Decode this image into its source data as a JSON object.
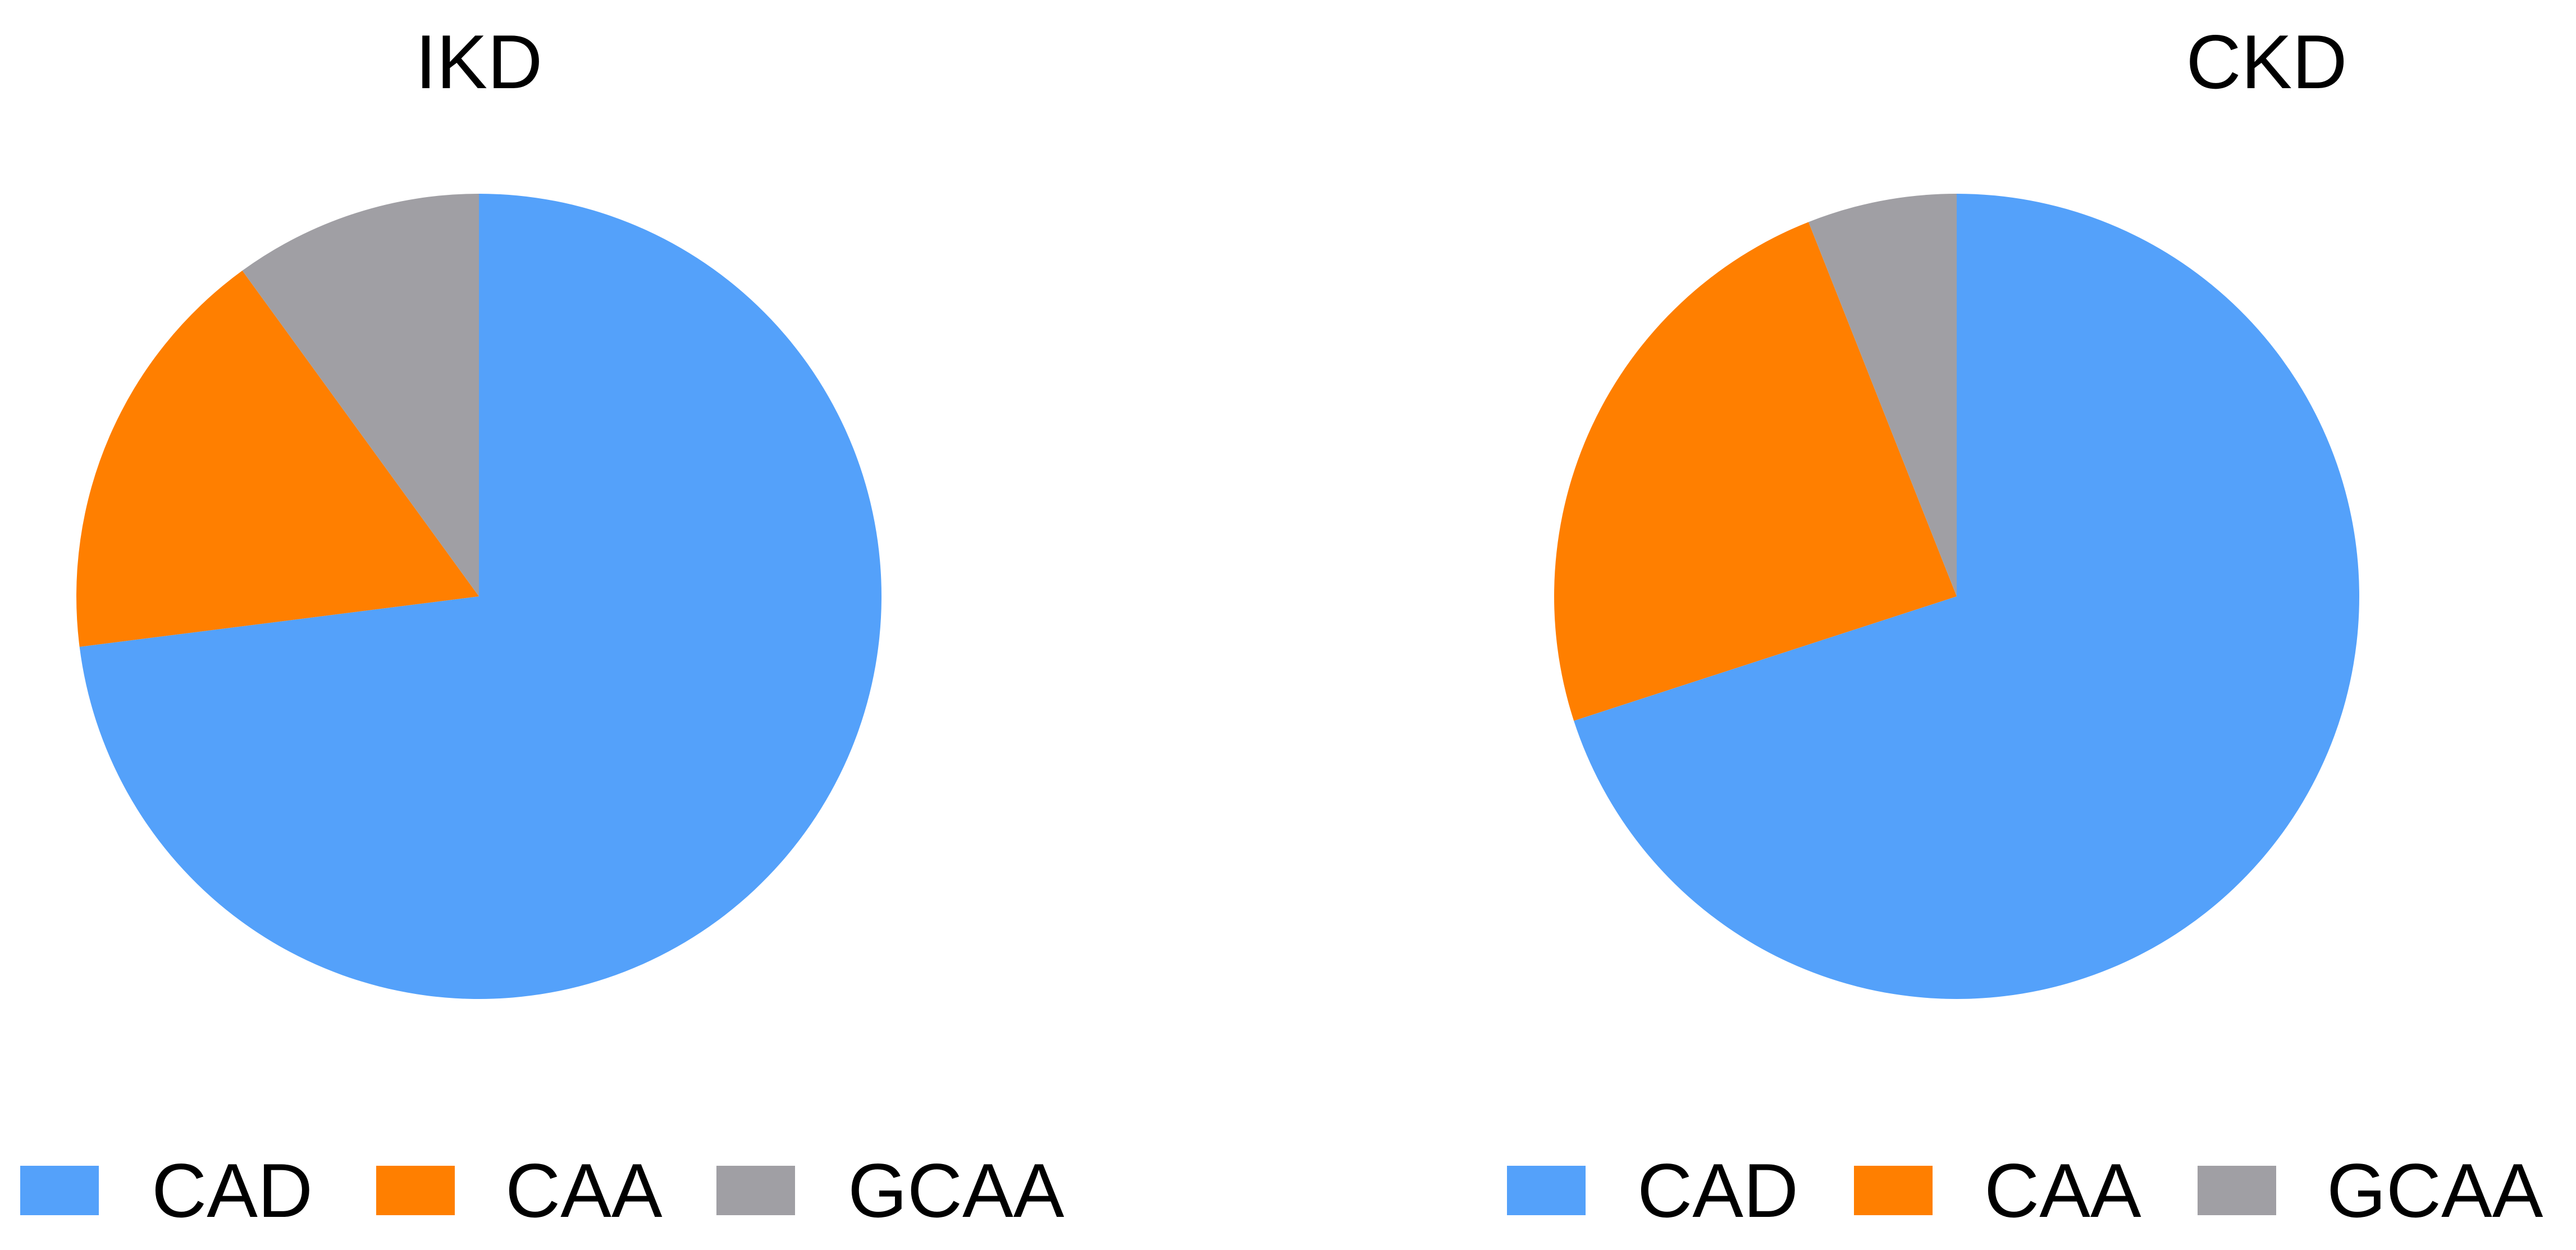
{
  "colors": {
    "CAD": "#54A1FA",
    "CAA": "#FF7F00",
    "GCAA": "#A09FA4"
  },
  "chart_data": [
    {
      "type": "pie",
      "title": "IKD",
      "categories": [
        "CAD",
        "CAA",
        "GCAA"
      ],
      "values": [
        73,
        17,
        10
      ],
      "legend_position": "bottom"
    },
    {
      "type": "pie",
      "title": "CKD",
      "categories": [
        "CAD",
        "CAA",
        "GCAA"
      ],
      "values": [
        70,
        24,
        6
      ],
      "legend_position": "bottom"
    }
  ]
}
